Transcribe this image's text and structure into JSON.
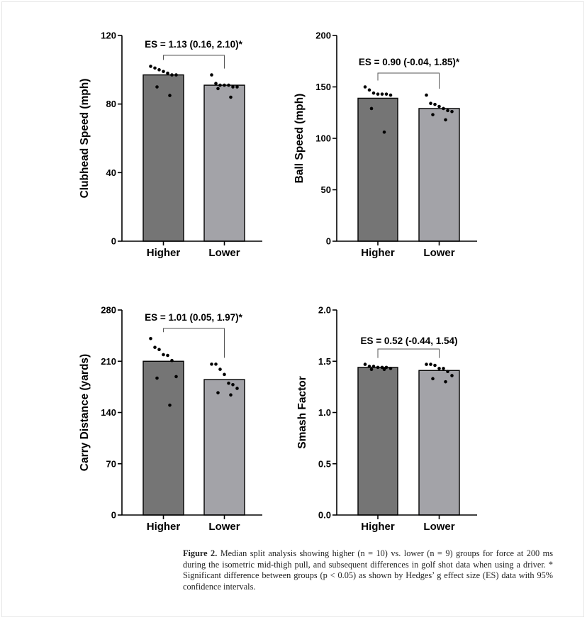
{
  "colors": {
    "higher_bar": "#757575",
    "lower_bar": "#a3a3a8",
    "axis": "#000000",
    "bracket": "#555555"
  },
  "chart_data": [
    {
      "type": "bar",
      "title": "",
      "categories": [
        "Higher",
        "Lower"
      ],
      "values": [
        97,
        91
      ],
      "ylabel": "Clubhead Speed (mph)",
      "ylim": [
        0,
        120
      ],
      "yticks": [
        0,
        40,
        80,
        120
      ],
      "ytick_labels": [
        "0",
        "40",
        "80",
        "120"
      ],
      "points": [
        [
          102,
          101,
          100,
          99,
          98,
          97,
          97,
          90,
          85
        ],
        [
          97,
          92,
          91,
          91,
          91,
          90,
          90,
          89,
          84
        ]
      ],
      "annotation": "ES = 1.13 (0.16, 2.10)*"
    },
    {
      "type": "bar",
      "title": "",
      "categories": [
        "Higher",
        "Lower"
      ],
      "values": [
        139,
        129
      ],
      "ylabel": "Ball Speed (mph)",
      "ylim": [
        0,
        200
      ],
      "yticks": [
        0,
        50,
        100,
        150,
        200
      ],
      "ytick_labels": [
        "0",
        "50",
        "100",
        "150",
        "200"
      ],
      "points": [
        [
          150,
          147,
          144,
          143,
          143,
          143,
          142,
          129,
          106
        ],
        [
          142,
          134,
          133,
          131,
          129,
          127,
          126,
          123,
          118
        ]
      ],
      "annotation": "ES = 0.90 (-0.04, 1.85)*"
    },
    {
      "type": "bar",
      "title": "",
      "categories": [
        "Higher",
        "Lower"
      ],
      "values": [
        210,
        185
      ],
      "ylabel": "Carry Distance (yards)",
      "ylim": [
        0,
        280
      ],
      "yticks": [
        0,
        70,
        140,
        210,
        280
      ],
      "ytick_labels": [
        "0",
        "70",
        "140",
        "210",
        "280"
      ],
      "points": [
        [
          241,
          229,
          226,
          219,
          218,
          211,
          189,
          187,
          150
        ],
        [
          206,
          206,
          199,
          192,
          180,
          178,
          173,
          167,
          164
        ]
      ],
      "annotation": "ES = 1.01 (0.05, 1.97)*"
    },
    {
      "type": "bar",
      "title": "",
      "categories": [
        "Higher",
        "Lower"
      ],
      "values": [
        1.44,
        1.41
      ],
      "ylabel": "Smash Factor",
      "ylim": [
        0,
        2.0
      ],
      "yticks": [
        0,
        0.5,
        1.0,
        1.5,
        2.0
      ],
      "ytick_labels": [
        "0.0",
        "0.5",
        "1.0",
        "1.5",
        "2.0"
      ],
      "points": [
        [
          1.47,
          1.45,
          1.45,
          1.44,
          1.44,
          1.44,
          1.43,
          1.42,
          1.42
        ],
        [
          1.47,
          1.47,
          1.46,
          1.43,
          1.43,
          1.4,
          1.36,
          1.33,
          1.3
        ]
      ],
      "annotation": "ES = 0.52 (-0.44, 1.54)"
    }
  ],
  "caption": {
    "label": "Figure 2.",
    "text": " Median split analysis showing higher (n = 10) vs. lower (n = 9) groups for force at 200 ms during the isometric mid-thigh pull, and subsequent differences in golf shot data when using a driver. * Significant difference between groups (p < 0.05) as shown by Hedges’ g effect size (ES) data with 95% confidence intervals."
  }
}
